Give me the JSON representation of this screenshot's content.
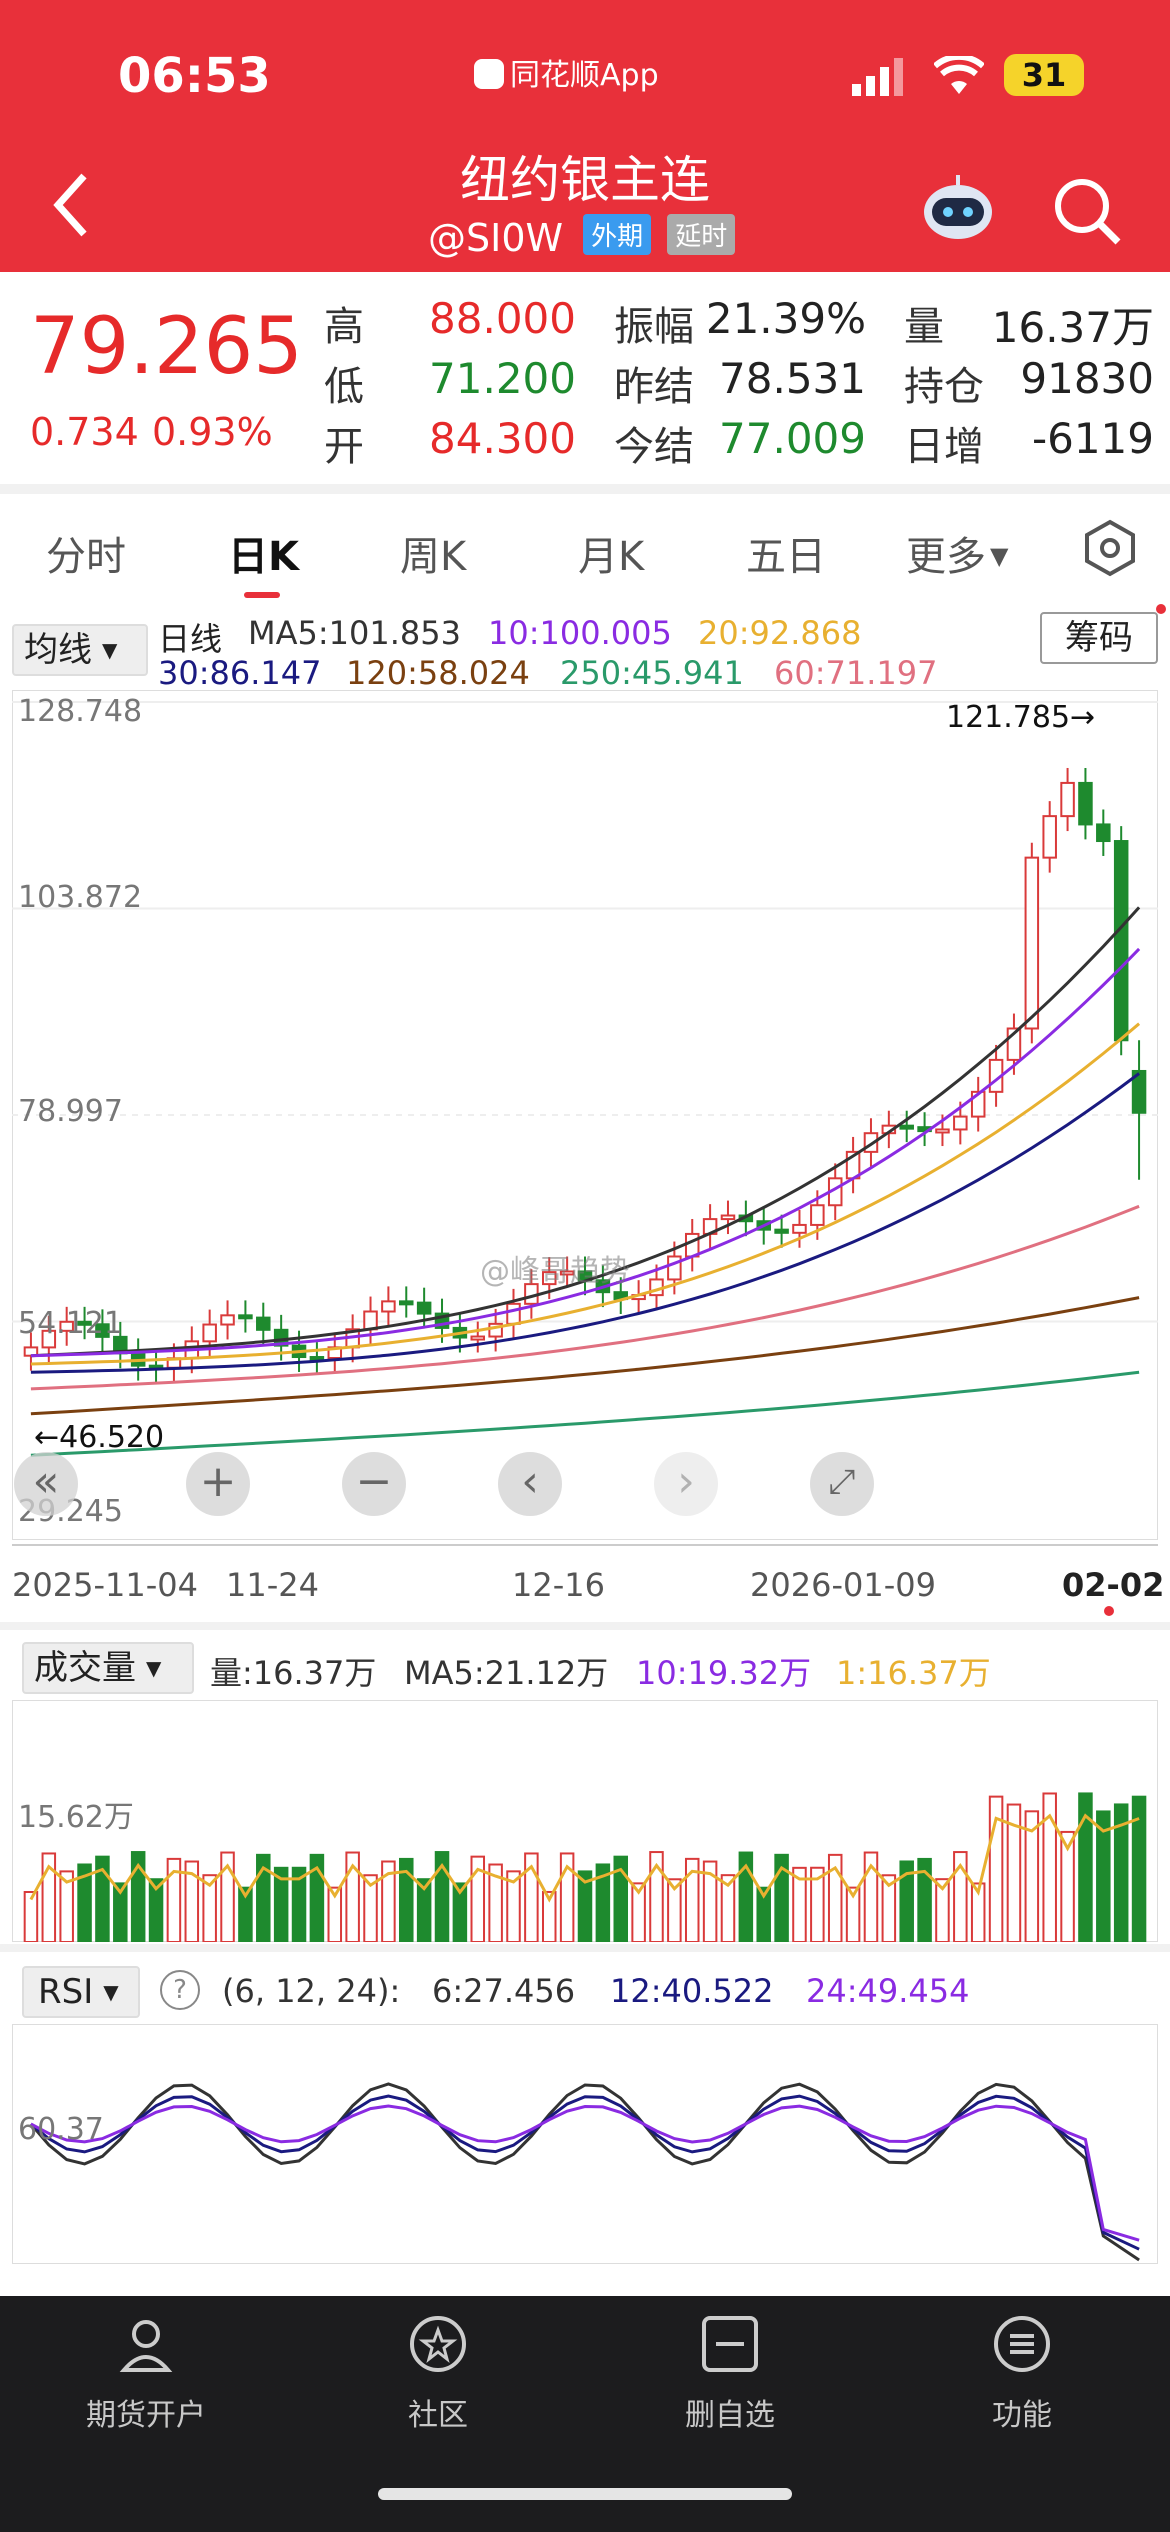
{
  "status_bar": {
    "time": "06:53",
    "center_app": "同花顺App",
    "battery": "31"
  },
  "header": {
    "title": "纽约银主连",
    "code": "@SI0W",
    "tags": [
      "外期",
      "延时"
    ]
  },
  "quote": {
    "price": "79.265",
    "change": "0.734",
    "change_pct": "0.93%",
    "rows": [
      [
        {
          "label": "高",
          "value": "88.000"
        },
        {
          "label": "振幅",
          "value": "21.39%"
        },
        {
          "label": "量",
          "value": "16.37万"
        }
      ],
      [
        {
          "label": "低",
          "value": "71.200"
        },
        {
          "label": "昨结",
          "value": "78.531"
        },
        {
          "label": "持仓",
          "value": "91830"
        }
      ],
      [
        {
          "label": "开",
          "value": "84.300"
        },
        {
          "label": "今结",
          "value": "77.009"
        },
        {
          "label": "日增",
          "value": "-6119"
        }
      ]
    ]
  },
  "tabs": [
    "分时",
    "日K",
    "周K",
    "月K",
    "五日",
    "更多"
  ],
  "active_tab": "日K",
  "kline": {
    "indicator_button": "均线",
    "series_label": "日线",
    "ma_row1": [
      "MA5:101.853",
      "10:100.005",
      "20:92.868"
    ],
    "ma_row2": [
      "30:86.147",
      "120:58.024",
      "250:45.941",
      "60:71.197"
    ],
    "chip_button": "筹码",
    "y_ticks": [
      "128.748",
      "103.872",
      "78.997",
      "54.121",
      "29.245"
    ],
    "high_label": "121.785→",
    "low_label": "←46.520",
    "watermark": "@峰哥趋势",
    "x_ticks": [
      "2025-11-04",
      "11-24",
      "12-16",
      "2026-01-09",
      "02-02"
    ]
  },
  "volume": {
    "button": "成交量",
    "labels": [
      "量:16.37万",
      "MA5:21.12万",
      "10:19.32万",
      "1:16.37万"
    ],
    "y_tick": "15.62万"
  },
  "rsi": {
    "button": "RSI",
    "params": "(6, 12, 24):",
    "values": [
      "6:27.456",
      "12:40.522",
      "24:49.454"
    ],
    "y_tick": "60.37"
  },
  "bottom_nav": [
    "期货开户",
    "社区",
    "删自选",
    "功能"
  ],
  "colors": {
    "up": "#d93a3a",
    "down": "#1e8a2e",
    "brand": "#e8303a",
    "ma5": "#333333",
    "ma10": "#8a2be2",
    "ma20": "#e8b030",
    "ma30": "#1a1a80",
    "ma60": "#e07080",
    "ma120": "#7a4010",
    "ma250": "#2a9a6a"
  },
  "chart_data": {
    "type": "candlestick",
    "ylim": [
      29.245,
      128.748
    ],
    "x_range": [
      "2025-11-04",
      "2026-02-02"
    ],
    "last": {
      "open": 84.3,
      "high": 88.0,
      "low": 71.2,
      "close": 79.265
    },
    "highest": 121.785,
    "lowest": 46.52
  }
}
